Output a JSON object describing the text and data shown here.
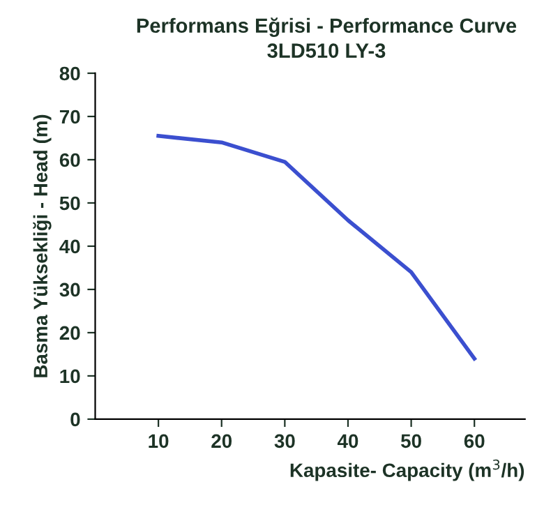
{
  "chart_data": {
    "type": "line",
    "title": "Performans Eğrisi - Performance Curve",
    "subtitle": "3LD510 LY-3",
    "xlabel": "Kapasite- Capacity (m$^{3}$/h)",
    "ylabel": "Basma Yüksekliği - Head (m)",
    "x": [
      10,
      20,
      30,
      40,
      50,
      60
    ],
    "series": [
      {
        "color": "#3b4fcf",
        "values": [
          65.5,
          64,
          59.5,
          46,
          34,
          14
        ]
      }
    ],
    "xlim": [
      0,
      68
    ],
    "xticks": [
      10,
      20,
      30,
      40,
      50,
      60
    ],
    "ylim": [
      0,
      80
    ],
    "yticks": [
      0,
      10,
      20,
      30,
      40,
      50,
      60,
      70,
      80
    ],
    "grid": false,
    "marker": "none",
    "line_style": "solid"
  }
}
